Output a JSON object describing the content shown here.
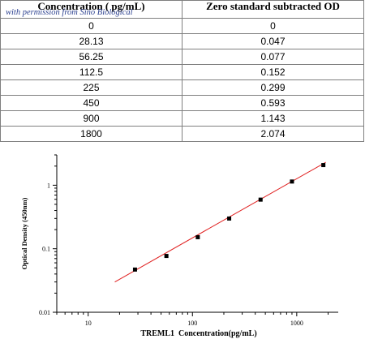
{
  "table": {
    "headers": [
      "Concentration ( pg/mL)",
      "Zero standard subtracted OD"
    ],
    "watermark": "with permission from Sino Biological",
    "rows": [
      [
        "0",
        "0"
      ],
      [
        "28.13",
        "0.047"
      ],
      [
        "56.25",
        "0.077"
      ],
      [
        "112.5",
        "0.152"
      ],
      [
        "225",
        "0.299"
      ],
      [
        "450",
        "0.593"
      ],
      [
        "900",
        "1.143"
      ],
      [
        "1800",
        "2.074"
      ]
    ]
  },
  "chart_data": {
    "type": "scatter",
    "xlabel": "TREML1  Concentration(pg/mL)",
    "ylabel": "Optical Density (450nm)",
    "x_scale": "log",
    "y_scale": "log",
    "xlim": [
      5,
      2500
    ],
    "ylim": [
      0.01,
      3
    ],
    "x_ticks": [
      10,
      100,
      1000
    ],
    "x_tick_labels": [
      "10",
      "100",
      "1000"
    ],
    "y_ticks": [
      0.01,
      0.1,
      1
    ],
    "y_tick_labels": [
      "0.01",
      "0.1",
      "1"
    ],
    "grid": false,
    "points": {
      "x": [
        28.13,
        56.25,
        112.5,
        225,
        450,
        900,
        1800
      ],
      "y": [
        0.047,
        0.077,
        0.152,
        0.299,
        0.593,
        1.143,
        2.074
      ]
    },
    "fit_line": {
      "x": [
        18,
        1900
      ],
      "y": [
        0.03,
        2.3
      ],
      "color": "#e02020"
    },
    "marker_color": "#000000"
  }
}
